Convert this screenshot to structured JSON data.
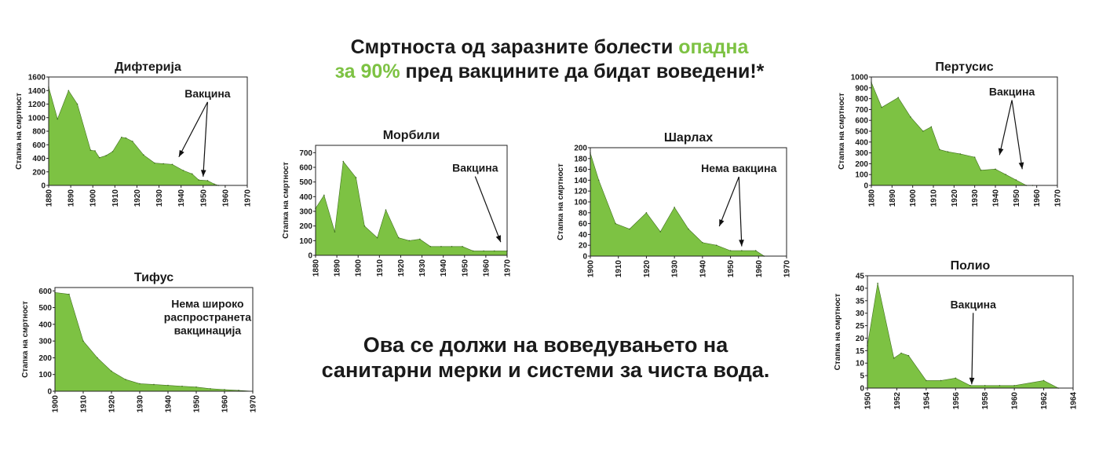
{
  "headline": {
    "top_part1": "Смртноста од заразните болести ",
    "top_green1": "опадна",
    "top_green2": "за 90%",
    "top_part2": " пред вакцините да бидат воведени!*",
    "bottom_line1": "Ова се должи на воведувањето на",
    "bottom_line2": "санитарни мерки и системи за чиста вода."
  },
  "colors": {
    "fill": "#7dc243",
    "accent": "#7dc243",
    "text": "#1a1a1a"
  },
  "chart_data": [
    {
      "id": "diphtheria",
      "type": "area",
      "title": "Дифтерија",
      "ylabel": "Стапка на смртност",
      "xlim": [
        1880,
        1970
      ],
      "ylim": [
        0,
        1600
      ],
      "xticks": [
        1880,
        1890,
        1900,
        1910,
        1920,
        1930,
        1940,
        1950,
        1960,
        1970
      ],
      "yticks": [
        0,
        200,
        400,
        600,
        800,
        1000,
        1200,
        1400,
        1600
      ],
      "series": [
        {
          "x": [
            1880,
            1884,
            1889,
            1893,
            1899,
            1901,
            1903,
            1906,
            1909,
            1913,
            1915,
            1918,
            1923,
            1928,
            1932,
            1936,
            1941,
            1945,
            1948,
            1952,
            1955,
            1957
          ],
          "y": [
            1450,
            980,
            1400,
            1200,
            520,
            510,
            410,
            440,
            500,
            710,
            700,
            650,
            450,
            330,
            320,
            310,
            220,
            170,
            80,
            70,
            20,
            0
          ]
        }
      ],
      "annotations": [
        {
          "text": "Вакцина",
          "at": [
            1952,
            1300
          ],
          "arrows": [
            [
              1939,
              420
            ],
            [
              1950,
              130
            ]
          ]
        }
      ]
    },
    {
      "id": "measles",
      "type": "area",
      "title": "Морбили",
      "ylabel": "Стапка на смртност",
      "xlim": [
        1880,
        1970
      ],
      "ylim": [
        0,
        750
      ],
      "xticks": [
        1880,
        1890,
        1900,
        1910,
        1920,
        1930,
        1940,
        1950,
        1960,
        1970
      ],
      "yticks": [
        0,
        100,
        200,
        300,
        400,
        500,
        600,
        700
      ],
      "series": [
        {
          "x": [
            1880,
            1884,
            1889,
            1893,
            1899,
            1903,
            1909,
            1913,
            1919,
            1924,
            1929,
            1934,
            1939,
            1944,
            1949,
            1954,
            1959,
            1964,
            1970
          ],
          "y": [
            320,
            410,
            160,
            640,
            530,
            200,
            120,
            310,
            120,
            100,
            110,
            60,
            60,
            60,
            60,
            30,
            30,
            30,
            30
          ]
        }
      ],
      "annotations": [
        {
          "text": "Вакцина",
          "at": [
            1955,
            570
          ],
          "arrows": [
            [
              1967,
              90
            ]
          ]
        }
      ]
    },
    {
      "id": "scarlet-fever",
      "type": "area",
      "title": "Шарлах",
      "ylabel": "Стапка на смртност",
      "xlim": [
        1900,
        1970
      ],
      "ylim": [
        0,
        200
      ],
      "xticks": [
        1900,
        1910,
        1920,
        1930,
        1940,
        1950,
        1960,
        1970
      ],
      "yticks": [
        0,
        20,
        40,
        60,
        80,
        100,
        120,
        140,
        160,
        180,
        200
      ],
      "series": [
        {
          "x": [
            1900,
            1903,
            1909,
            1914,
            1920,
            1925,
            1930,
            1935,
            1940,
            1945,
            1950,
            1954,
            1959,
            1962
          ],
          "y": [
            190,
            140,
            60,
            50,
            80,
            45,
            90,
            50,
            25,
            20,
            10,
            10,
            10,
            0
          ]
        }
      ],
      "annotations": [
        {
          "text": "Нема вакцина",
          "at": [
            1953,
            155
          ],
          "arrows": [
            [
              1946,
              55
            ],
            [
              1954,
              18
            ]
          ]
        }
      ]
    },
    {
      "id": "pertussis",
      "type": "area",
      "title": "Пертусис",
      "ylabel": "Стапка на смртност",
      "xlim": [
        1880,
        1970
      ],
      "ylim": [
        0,
        1000
      ],
      "xticks": [
        1880,
        1890,
        1900,
        1910,
        1920,
        1930,
        1940,
        1950,
        1960,
        1970
      ],
      "yticks": [
        0,
        100,
        200,
        300,
        400,
        500,
        600,
        700,
        800,
        900,
        1000
      ],
      "series": [
        {
          "x": [
            1880,
            1885,
            1893,
            1899,
            1905,
            1909,
            1913,
            1917,
            1923,
            1930,
            1933,
            1940,
            1945,
            1950,
            1955,
            1958
          ],
          "y": [
            950,
            720,
            810,
            630,
            500,
            540,
            330,
            310,
            290,
            260,
            140,
            150,
            100,
            50,
            0,
            0
          ]
        }
      ],
      "annotations": [
        {
          "text": "Вакцина",
          "at": [
            1948,
            830
          ],
          "arrows": [
            [
              1942,
              280
            ],
            [
              1953,
              150
            ]
          ]
        }
      ]
    },
    {
      "id": "typhoid",
      "type": "area",
      "title": "Тифус",
      "ylabel": "Стапка на смртност",
      "xlim": [
        1900,
        1970
      ],
      "ylim": [
        0,
        620
      ],
      "xticks": [
        1900,
        1910,
        1920,
        1930,
        1940,
        1950,
        1960,
        1970
      ],
      "yticks": [
        0,
        100,
        200,
        300,
        400,
        500,
        600
      ],
      "series": [
        {
          "x": [
            1900,
            1905,
            1910,
            1915,
            1920,
            1925,
            1930,
            1935,
            1940,
            1945,
            1950,
            1955,
            1960,
            1965,
            1970
          ],
          "y": [
            590,
            580,
            300,
            200,
            120,
            70,
            45,
            40,
            35,
            30,
            25,
            15,
            10,
            5,
            0
          ]
        }
      ],
      "annotations": [
        {
          "text": "Нема широко\nраспространета\nвакцинација",
          "at": [
            1954,
            500
          ]
        }
      ]
    },
    {
      "id": "polio",
      "type": "area",
      "title": "Полио",
      "ylabel": "Стапка на смртност",
      "xlim": [
        1950,
        1964
      ],
      "ylim": [
        0,
        45
      ],
      "xticks": [
        1950,
        1952,
        1954,
        1956,
        1958,
        1960,
        1962,
        1964
      ],
      "yticks": [
        0,
        5,
        10,
        15,
        20,
        25,
        30,
        35,
        40,
        45
      ],
      "series": [
        {
          "x": [
            1950,
            1950.7,
            1951.8,
            1952.3,
            1952.8,
            1954,
            1955,
            1956,
            1957,
            1958,
            1959,
            1960,
            1962,
            1963
          ],
          "y": [
            17,
            42,
            12,
            14,
            13,
            3,
            3,
            4,
            1,
            1,
            1,
            1,
            3,
            0
          ]
        }
      ],
      "annotations": [
        {
          "text": "Вакцина",
          "at": [
            1957.2,
            32
          ],
          "arrows": [
            [
              1957.1,
              1.5
            ]
          ]
        }
      ]
    }
  ]
}
